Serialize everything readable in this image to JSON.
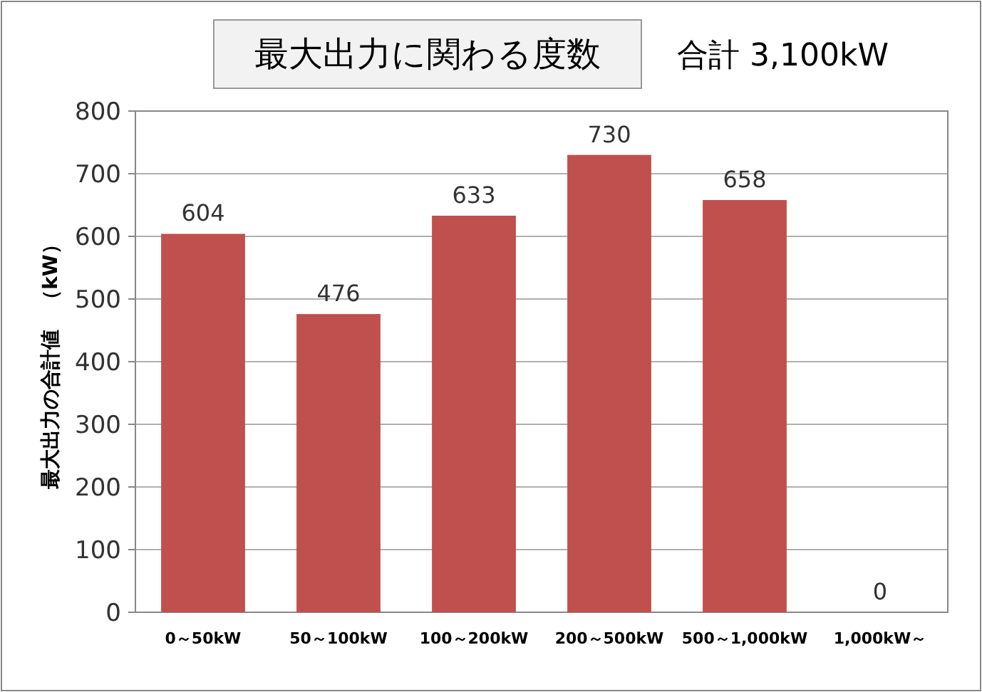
{
  "chart_data": {
    "type": "bar",
    "title": "最大出力に関わる度数",
    "ylabel": "最大出力の合計値　（kW）",
    "categories": [
      "0～50kW",
      "50～100kW",
      "100～200kW",
      "200～500kW",
      "500～1,000kW",
      "1,000kW～"
    ],
    "values": [
      604,
      476,
      633,
      730,
      658,
      0
    ],
    "color": "#c0504d",
    "ylim": [
      0,
      800
    ],
    "yticks": [
      0,
      100,
      200,
      300,
      400,
      500,
      600,
      700,
      800
    ],
    "grid": "y",
    "data_labels": true,
    "annotations": [
      "合計 3,100kW"
    ]
  }
}
